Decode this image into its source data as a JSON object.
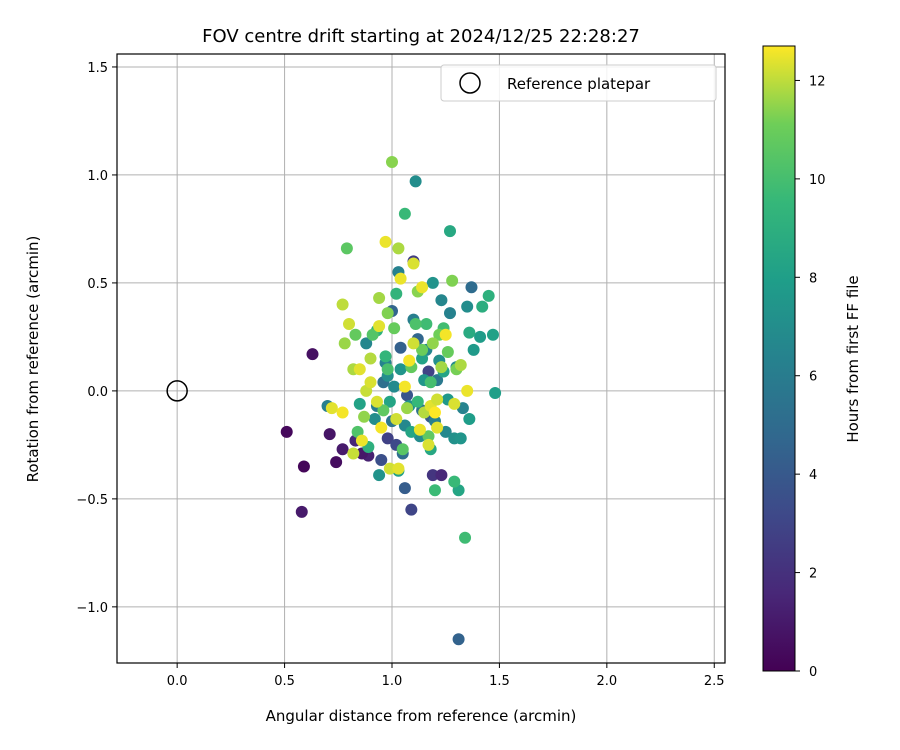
{
  "chart_data": {
    "type": "scatter",
    "title": "FOV centre drift starting at 2024/12/25 22:28:27",
    "xlabel": "Angular distance from reference (arcmin)",
    "ylabel": "Rotation from reference (arcmin)",
    "xlim": [
      -0.28,
      2.55
    ],
    "ylim": [
      -1.26,
      1.56
    ],
    "xticks": [
      0.0,
      0.5,
      1.0,
      1.5,
      2.0,
      2.5
    ],
    "xtick_labels": [
      "0.0",
      "0.5",
      "1.0",
      "1.5",
      "2.0",
      "2.5"
    ],
    "yticks": [
      -1.0,
      -0.5,
      0.0,
      0.5,
      1.0,
      1.5
    ],
    "ytick_labels": [
      "−1.0",
      "−0.5",
      "0.0",
      "0.5",
      "1.0",
      "1.5"
    ],
    "grid": true,
    "legend": {
      "position": "top-right",
      "entries": [
        "Reference platepar"
      ]
    },
    "reference_point": {
      "x": 0.0,
      "y": 0.0
    },
    "colorbar": {
      "label": "Hours from first FF file",
      "colormap": "viridis",
      "range": [
        0,
        12.7
      ],
      "ticks": [
        0,
        2,
        4,
        6,
        8,
        10,
        12
      ],
      "tick_labels": [
        "0",
        "2",
        "4",
        "6",
        "8",
        "10",
        "12"
      ]
    },
    "series": [
      {
        "points": [
          [
            0.51,
            -0.19,
            0.3
          ],
          [
            0.58,
            -0.56,
            1.0
          ],
          [
            0.59,
            -0.35,
            0.2
          ],
          [
            0.63,
            0.17,
            0.6
          ],
          [
            0.71,
            -0.2,
            0.8
          ],
          [
            0.74,
            -0.33,
            0.5
          ],
          [
            0.77,
            -0.27,
            1.0
          ],
          [
            0.83,
            -0.23,
            1.5
          ],
          [
            0.89,
            -0.3,
            1.3
          ],
          [
            0.86,
            -0.29,
            0.9
          ],
          [
            0.95,
            -0.32,
            3.5
          ],
          [
            0.98,
            -0.22,
            2.8
          ],
          [
            1.02,
            -0.25,
            3.2
          ],
          [
            1.06,
            -0.45,
            4.2
          ],
          [
            1.09,
            -0.55,
            3.0
          ],
          [
            1.07,
            -0.02,
            3.8
          ],
          [
            1.1,
            0.6,
            2.6
          ],
          [
            1.17,
            0.09,
            2.9
          ],
          [
            1.19,
            -0.39,
            2.2
          ],
          [
            1.23,
            -0.39,
            1.6
          ],
          [
            1.31,
            -1.15,
            4.5
          ],
          [
            1.0,
            0.37,
            4.6
          ],
          [
            1.04,
            0.2,
            4.4
          ],
          [
            1.12,
            0.24,
            4.7
          ],
          [
            1.18,
            -0.12,
            4.1
          ],
          [
            0.96,
            0.04,
            5.2
          ],
          [
            1.0,
            -0.14,
            5.6
          ],
          [
            1.05,
            -0.29,
            5.1
          ],
          [
            1.14,
            -0.09,
            5.4
          ],
          [
            1.21,
            0.05,
            5.8
          ],
          [
            1.37,
            0.48,
            5.0
          ],
          [
            0.7,
            -0.07,
            6.2
          ],
          [
            0.88,
            0.22,
            6.6
          ],
          [
            0.93,
            -0.07,
            6.0
          ],
          [
            0.97,
            0.13,
            6.4
          ],
          [
            1.01,
            0.02,
            6.8
          ],
          [
            1.03,
            0.55,
            6.3
          ],
          [
            1.06,
            -0.16,
            6.7
          ],
          [
            1.1,
            0.33,
            6.1
          ],
          [
            1.13,
            -0.21,
            6.9
          ],
          [
            1.16,
            0.19,
            6.5
          ],
          [
            1.2,
            -0.14,
            6.2
          ],
          [
            1.23,
            0.42,
            6.6
          ],
          [
            1.27,
            0.36,
            6.3
          ],
          [
            1.3,
            0.11,
            6.8
          ],
          [
            1.33,
            -0.08,
            6.4
          ],
          [
            1.25,
            -0.19,
            6.7
          ],
          [
            0.92,
            -0.13,
            7.0
          ],
          [
            0.94,
            -0.39,
            7.3
          ],
          [
            0.98,
            0.07,
            7.1
          ],
          [
            1.04,
            0.1,
            7.4
          ],
          [
            1.08,
            -0.07,
            7.2
          ],
          [
            1.11,
            0.97,
            7.0
          ],
          [
            1.15,
            0.05,
            7.5
          ],
          [
            1.19,
            0.5,
            7.3
          ],
          [
            1.22,
            0.14,
            7.1
          ],
          [
            1.26,
            -0.04,
            7.6
          ],
          [
            1.29,
            -0.22,
            7.2
          ],
          [
            1.32,
            -0.22,
            7.4
          ],
          [
            1.35,
            0.39,
            7.0
          ],
          [
            1.38,
            0.19,
            7.7
          ],
          [
            1.41,
            0.25,
            7.8
          ],
          [
            1.36,
            -0.13,
            7.9
          ],
          [
            1.48,
            -0.01,
            8.0
          ],
          [
            1.47,
            0.26,
            8.1
          ],
          [
            0.85,
            -0.06,
            8.2
          ],
          [
            0.99,
            -0.05,
            8.3
          ],
          [
            1.03,
            -0.37,
            8.0
          ],
          [
            1.09,
            -0.19,
            8.4
          ],
          [
            1.14,
            0.15,
            8.2
          ],
          [
            1.18,
            -0.27,
            8.5
          ],
          [
            1.24,
            0.09,
            8.3
          ],
          [
            1.27,
            0.74,
            8.6
          ],
          [
            1.31,
            -0.46,
            8.4
          ],
          [
            1.36,
            0.27,
            8.7
          ],
          [
            1.42,
            0.39,
            8.9
          ],
          [
            1.45,
            0.44,
            9.1
          ],
          [
            0.89,
            -0.26,
            9.0
          ],
          [
            0.93,
            0.28,
            9.2
          ],
          [
            0.97,
            0.16,
            9.4
          ],
          [
            1.02,
            0.45,
            9.3
          ],
          [
            1.06,
            0.82,
            9.6
          ],
          [
            1.12,
            -0.05,
            9.5
          ],
          [
            1.16,
            0.31,
            9.8
          ],
          [
            1.2,
            -0.46,
            9.7
          ],
          [
            1.24,
            0.29,
            9.9
          ],
          [
            1.29,
            -0.42,
            9.6
          ],
          [
            1.34,
            -0.68,
            9.8
          ],
          [
            1.18,
            0.04,
            10.0
          ],
          [
            1.11,
            0.31,
            10.2
          ],
          [
            0.98,
            0.1,
            10.1
          ],
          [
            0.84,
            -0.19,
            10.3
          ],
          [
            0.79,
            0.66,
            10.6
          ],
          [
            0.83,
            0.26,
            10.8
          ],
          [
            0.91,
            0.26,
            10.4
          ],
          [
            0.96,
            -0.09,
            10.7
          ],
          [
            1.01,
            0.29,
            10.9
          ],
          [
            1.05,
            -0.27,
            10.5
          ],
          [
            1.09,
            0.11,
            10.8
          ],
          [
            1.14,
            0.19,
            11.0
          ],
          [
            1.17,
            -0.21,
            10.7
          ],
          [
            1.22,
            0.26,
            11.1
          ],
          [
            1.26,
            0.18,
            10.9
          ],
          [
            1.3,
            0.1,
            11.2
          ],
          [
            1.0,
            1.06,
            11.4
          ],
          [
            0.78,
            0.22,
            11.6
          ],
          [
            0.82,
            0.1,
            11.8
          ],
          [
            0.87,
            -0.12,
            11.5
          ],
          [
            0.9,
            0.15,
            11.9
          ],
          [
            0.94,
            0.43,
            11.7
          ],
          [
            0.98,
            0.36,
            11.3
          ],
          [
            1.03,
            0.66,
            11.8
          ],
          [
            1.07,
            -0.08,
            11.6
          ],
          [
            1.12,
            0.46,
            11.4
          ],
          [
            1.15,
            -0.1,
            11.9
          ],
          [
            1.19,
            0.22,
            11.5
          ],
          [
            1.23,
            0.11,
            11.7
          ],
          [
            1.28,
            0.51,
            11.3
          ],
          [
            1.32,
            0.12,
            11.8
          ],
          [
            0.77,
            0.4,
            12.0
          ],
          [
            0.8,
            0.31,
            12.2
          ],
          [
            0.85,
            0.1,
            12.4
          ],
          [
            0.88,
            0.0,
            12.1
          ],
          [
            0.93,
            -0.05,
            12.3
          ],
          [
            0.97,
            0.69,
            12.5
          ],
          [
            1.02,
            -0.13,
            12.2
          ],
          [
            1.06,
            0.02,
            12.6
          ],
          [
            1.1,
            0.59,
            12.3
          ],
          [
            1.14,
            0.48,
            12.5
          ],
          [
            1.18,
            -0.07,
            12.4
          ],
          [
            1.21,
            -0.04,
            12.2
          ],
          [
            1.25,
            0.26,
            12.6
          ],
          [
            1.29,
            -0.06,
            12.3
          ],
          [
            1.35,
            0.0,
            12.5
          ],
          [
            0.72,
            -0.08,
            12.4
          ],
          [
            0.77,
            -0.1,
            12.6
          ],
          [
            0.82,
            -0.29,
            12.1
          ],
          [
            0.86,
            -0.23,
            12.5
          ],
          [
            0.9,
            0.04,
            12.3
          ],
          [
            0.95,
            -0.17,
            12.6
          ],
          [
            0.99,
            -0.36,
            12.2
          ],
          [
            1.03,
            -0.36,
            12.4
          ],
          [
            1.08,
            0.14,
            12.6
          ],
          [
            1.13,
            -0.18,
            12.5
          ],
          [
            1.17,
            -0.25,
            12.3
          ],
          [
            1.2,
            -0.1,
            12.7
          ],
          [
            0.94,
            0.3,
            12.4
          ],
          [
            1.04,
            0.52,
            12.5
          ],
          [
            1.1,
            0.22,
            12.2
          ],
          [
            1.21,
            -0.17,
            12.4
          ]
        ]
      }
    ]
  }
}
